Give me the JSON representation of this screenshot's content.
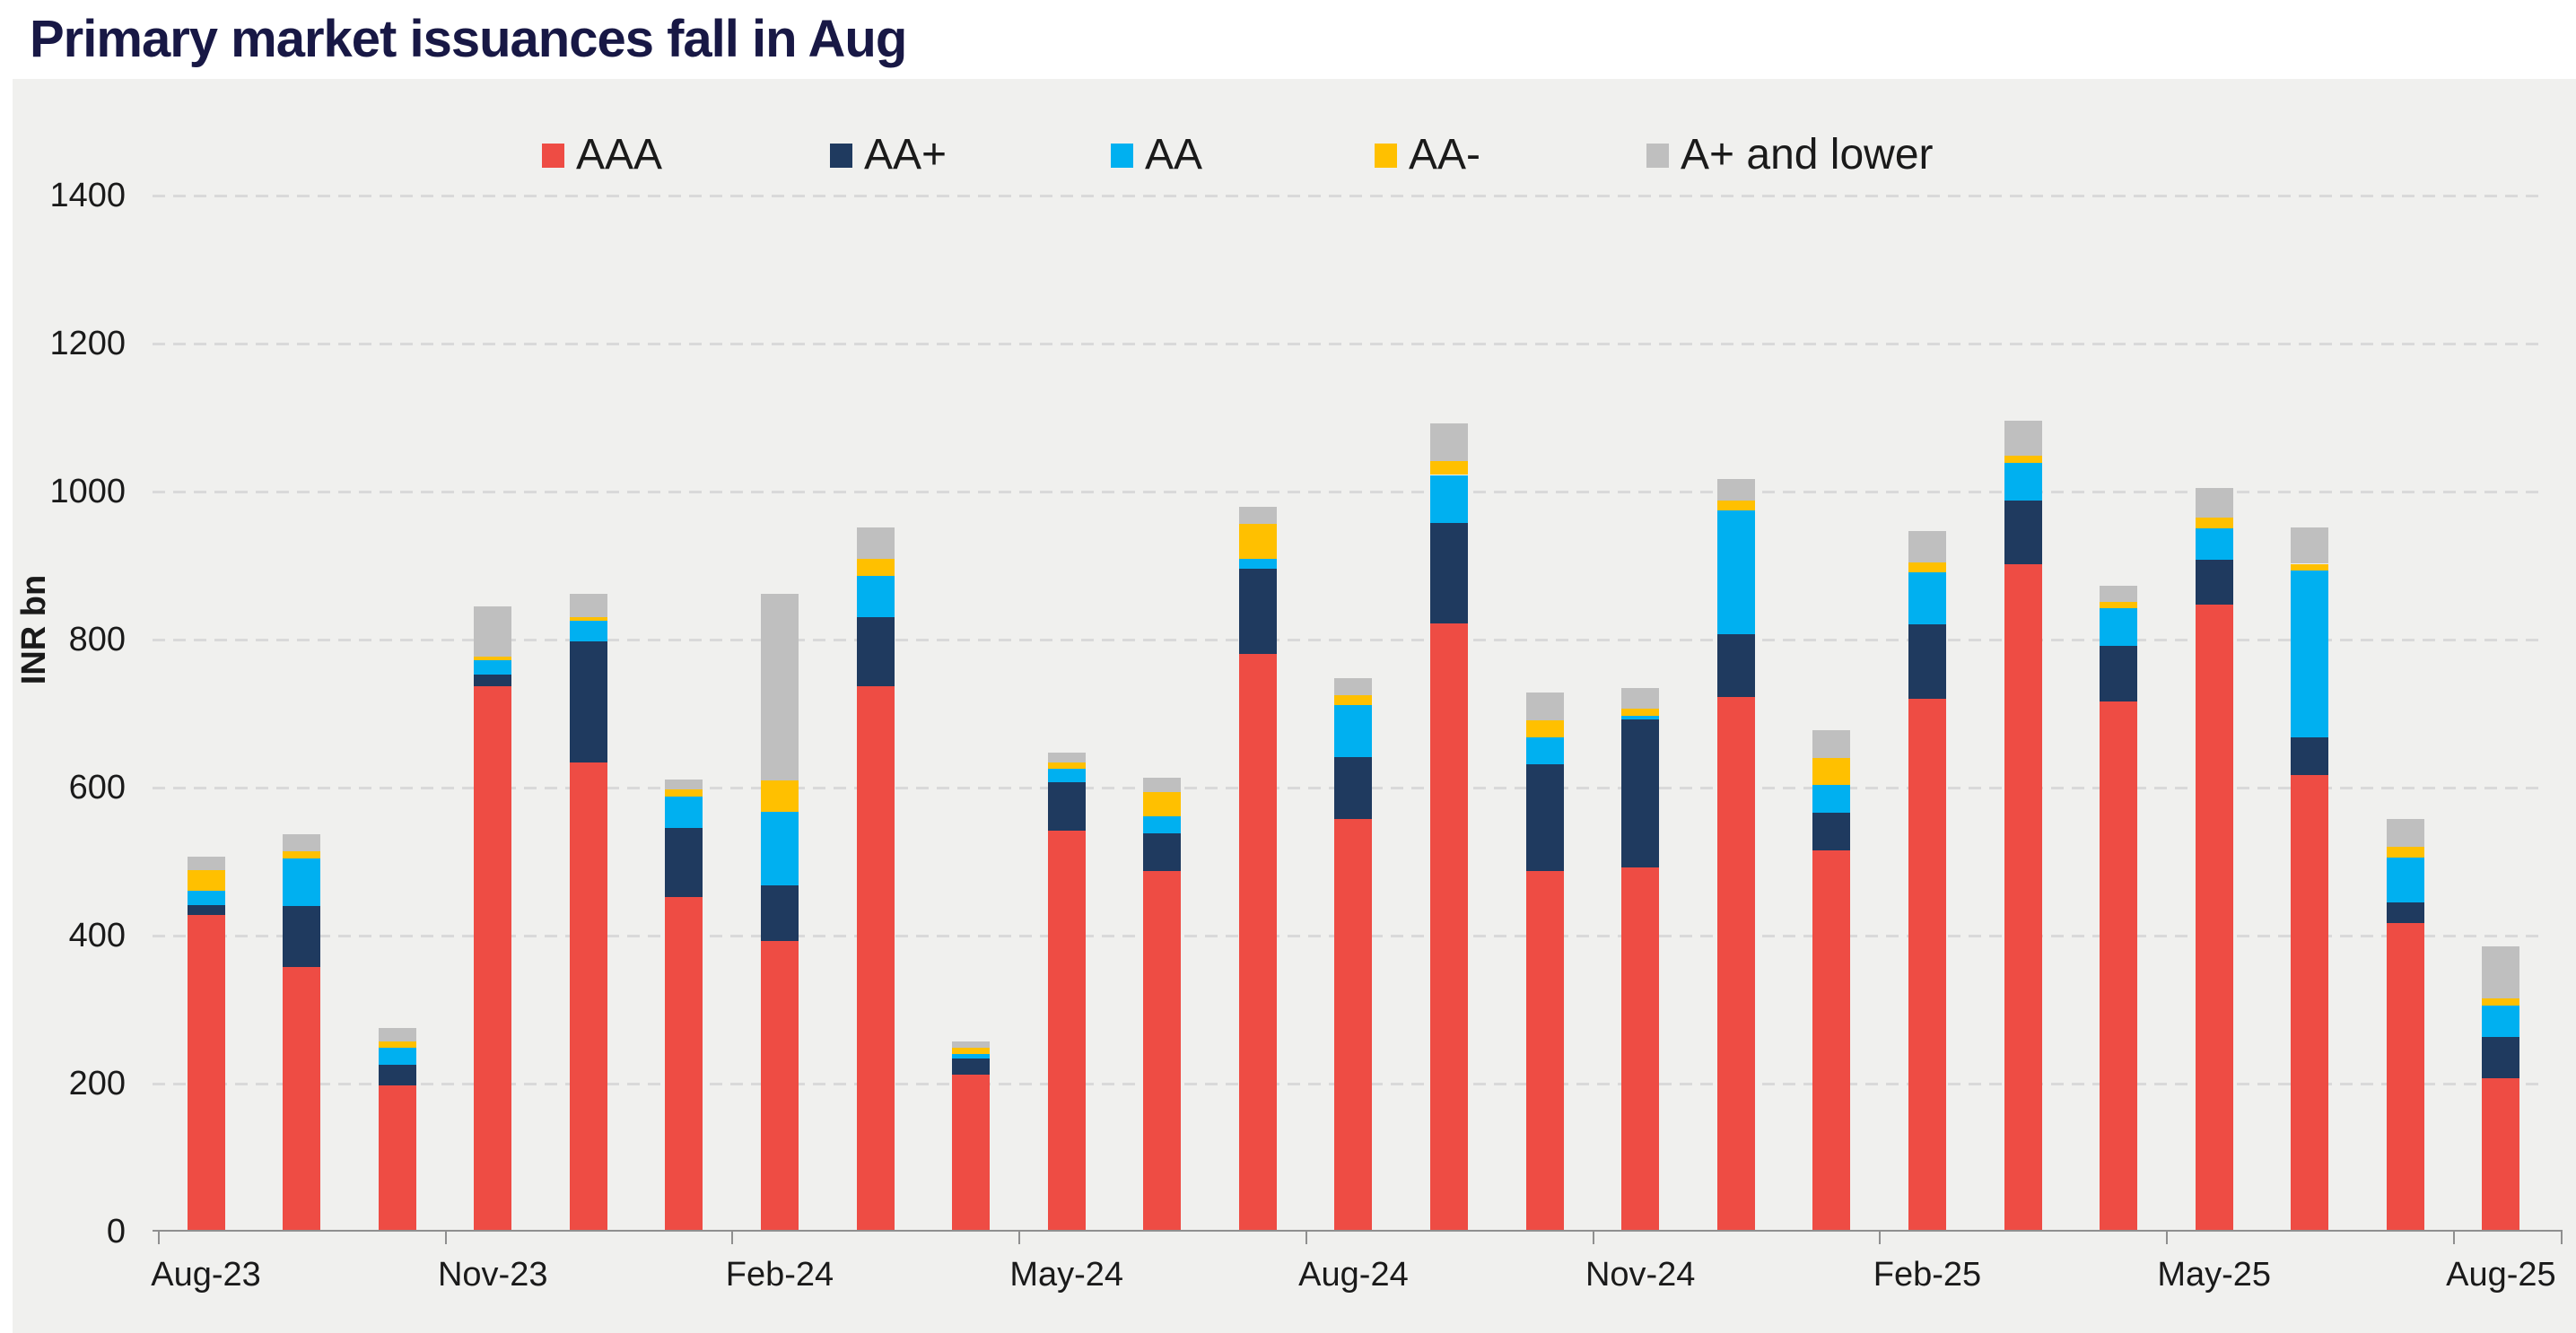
{
  "page": {
    "title": "Primary market issuances fall in Aug"
  },
  "style": {
    "title_color": "#181845",
    "panel_bg": "#f0f0ee",
    "grid_color": "#d9d9d9",
    "axis_color": "#8f8f8f",
    "text_color": "#1a1a1a"
  },
  "chart_data": {
    "type": "bar",
    "stacked": true,
    "title": "Primary market issuances fall in Aug",
    "xlabel": "",
    "ylabel": "INR bn",
    "ylim": [
      0,
      1400
    ],
    "ytick_step": 200,
    "yticks": [
      0,
      200,
      400,
      600,
      800,
      1000,
      1200,
      1400
    ],
    "grid": "horizontal-dashed",
    "legend_position": "top",
    "categories": [
      "Aug-23",
      "Sep-23",
      "Oct-23",
      "Nov-23",
      "Dec-23",
      "Jan-24",
      "Feb-24",
      "Mar-24",
      "Apr-24",
      "May-24",
      "Jun-24",
      "Jul-24",
      "Aug-24",
      "Sep-24",
      "Oct-24",
      "Nov-24",
      "Dec-24",
      "Jan-25",
      "Feb-25",
      "Mar-25",
      "Apr-25",
      "May-25",
      "Jun-25",
      "Jul-25",
      "Aug-25"
    ],
    "xtick_labels": [
      "Aug-23",
      "Nov-23",
      "Feb-24",
      "May-24",
      "Aug-24",
      "Nov-24",
      "Feb-25",
      "May-25",
      "Aug-25"
    ],
    "series": [
      {
        "name": "AAA",
        "color": "#ee4c44",
        "values": [
          425,
          355,
          195,
          735,
          632,
          450,
          390,
          735,
          210,
          540,
          485,
          778,
          555,
          820,
          485,
          490,
          720,
          513,
          718,
          900,
          714,
          845,
          615,
          415,
          205
        ]
      },
      {
        "name": "AA+",
        "color": "#1f3a5f",
        "values": [
          14,
          82,
          28,
          15,
          163,
          93,
          75,
          93,
          22,
          65,
          51,
          115,
          84,
          135,
          144,
          200,
          85,
          51,
          100,
          85,
          75,
          61,
          50,
          28,
          56
        ]
      },
      {
        "name": "AA",
        "color": "#00b0f0",
        "values": [
          19,
          65,
          23,
          20,
          28,
          42,
          100,
          56,
          5,
          18,
          23,
          14,
          70,
          65,
          37,
          5,
          167,
          37,
          70,
          51,
          51,
          42,
          226,
          60,
          42
        ]
      },
      {
        "name": "AA-",
        "color": "#ffc000",
        "values": [
          28,
          10,
          9,
          5,
          5,
          10,
          42,
          23,
          9,
          9,
          33,
          47,
          14,
          19,
          23,
          9,
          14,
          37,
          14,
          10,
          9,
          14,
          9,
          14,
          10
        ]
      },
      {
        "name": "A+ and lower",
        "color": "#bfbfbf",
        "values": [
          18,
          23,
          18,
          68,
          32,
          14,
          253,
          42,
          9,
          13,
          19,
          23,
          23,
          51,
          37,
          28,
          28,
          37,
          42,
          47,
          21,
          41,
          49,
          38,
          70
        ]
      }
    ],
    "totals": [
      504,
      535,
      273,
      843,
      860,
      609,
      860,
      949,
      255,
      645,
      611,
      977,
      746,
      1090,
      726,
      732,
      1014,
      675,
      944,
      1093,
      870,
      1003,
      949,
      555,
      383
    ]
  }
}
